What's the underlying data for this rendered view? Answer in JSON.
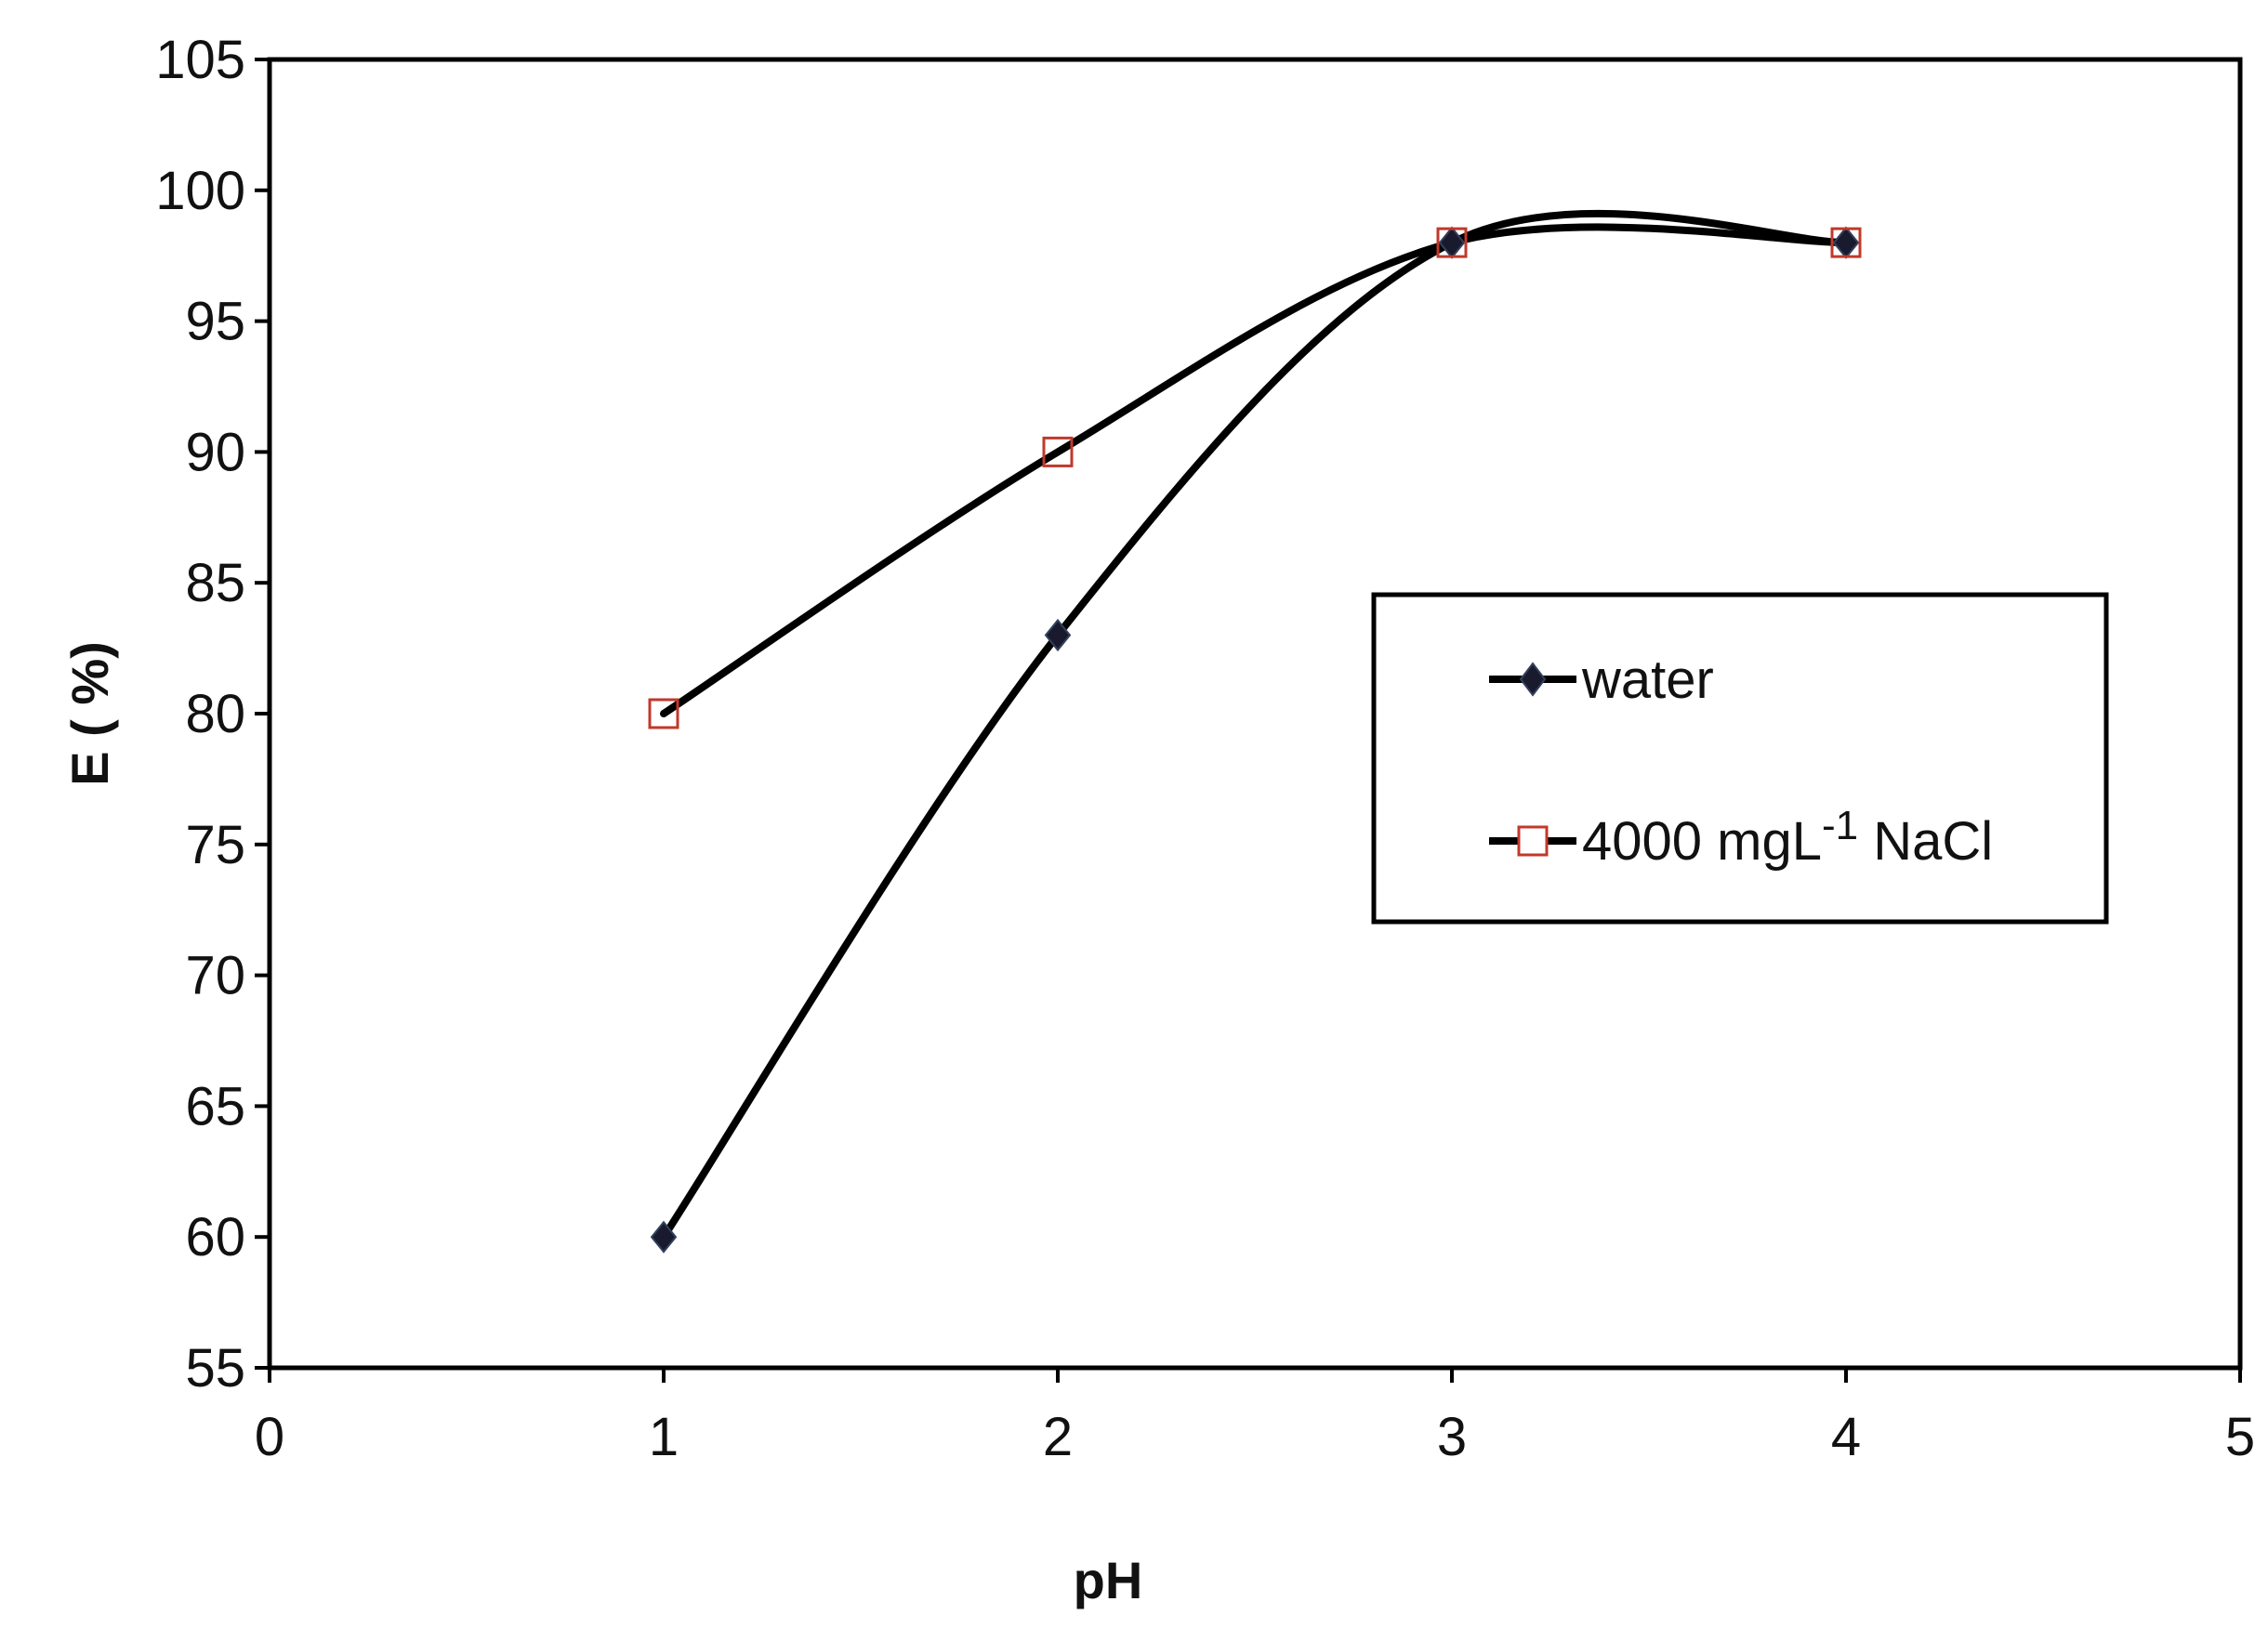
{
  "chart_data": {
    "type": "line",
    "xlabel": "pH",
    "ylabel": "E ( %)",
    "xlim": [
      0,
      5
    ],
    "ylim": [
      55,
      105
    ],
    "xticks": [
      0,
      1,
      2,
      3,
      4,
      5
    ],
    "yticks": [
      55,
      60,
      65,
      70,
      75,
      80,
      85,
      90,
      95,
      100,
      105
    ],
    "grid": false,
    "legend_position": "right",
    "smooth_lines": true,
    "series": [
      {
        "name": "water",
        "marker": "diamond",
        "marker_color": "#1a1a2e",
        "line_color": "#000000",
        "x": [
          1,
          2,
          3,
          4
        ],
        "y": [
          60,
          83,
          98,
          98
        ]
      },
      {
        "name": "4000 mgL-1 NaCl",
        "name_parts": {
          "base": "4000 mgL",
          "sup": "-1",
          "suffix": " NaCl"
        },
        "marker": "square-open",
        "marker_color": "#c0392b",
        "line_color": "#000000",
        "x": [
          1,
          2,
          3,
          4
        ],
        "y": [
          80,
          90,
          98,
          98
        ]
      }
    ]
  }
}
